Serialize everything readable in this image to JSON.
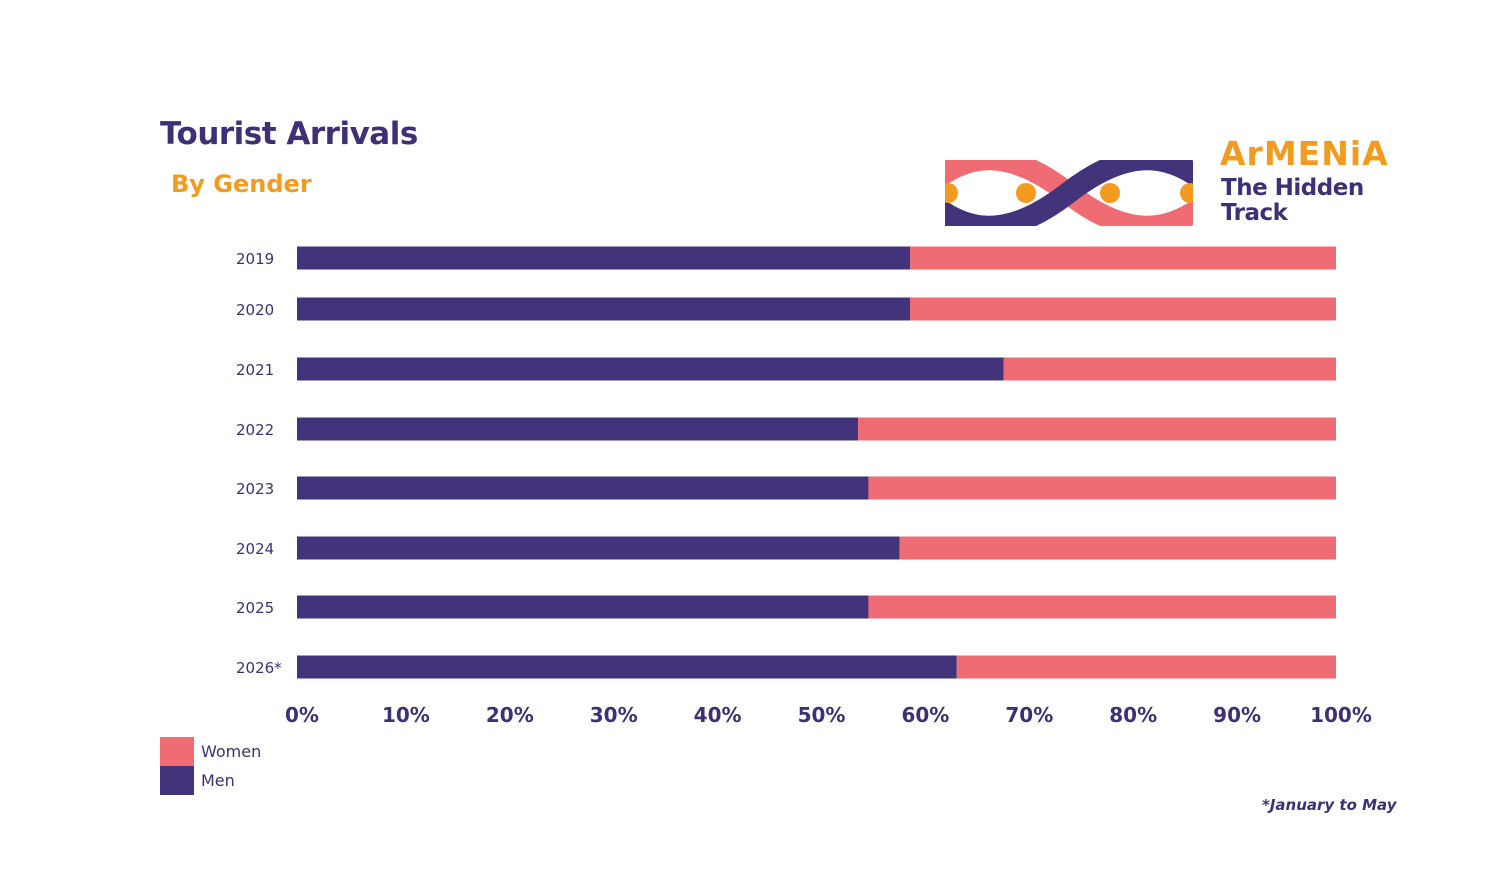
{
  "title": "Tourist Arrivals",
  "subtitle": "By Gender",
  "logo": {
    "name": "ArMENiA",
    "tagline_line1": "The Hidden",
    "tagline_line2": "Track"
  },
  "footnote": "*January to May",
  "colors": {
    "men": "#43337a",
    "women": "#f06c75",
    "title": "#3f2f74",
    "accent": "#f39a20"
  },
  "legend": {
    "items": [
      {
        "label": "Women",
        "color": "#f06c75"
      },
      {
        "label": "Men",
        "color": "#43337a"
      }
    ]
  },
  "chart_data": {
    "type": "bar",
    "orientation": "horizontal",
    "stacked": "percent",
    "title": "Tourist Arrivals",
    "subtitle": "By Gender",
    "categories": [
      "2019",
      "2020",
      "2021",
      "2022",
      "2023",
      "2024",
      "2025",
      "2026*"
    ],
    "series": [
      {
        "name": "Men",
        "values": [
          59,
          59,
          68,
          54,
          55,
          58,
          55,
          63.5
        ]
      },
      {
        "name": "Women",
        "values": [
          41,
          41,
          32,
          46,
          45,
          42,
          45,
          36.5
        ]
      }
    ],
    "xlim": [
      0,
      100
    ],
    "xticks": [
      "0%",
      "10%",
      "20%",
      "30%",
      "40%",
      "50%",
      "60%",
      "70%",
      "80%",
      "90%",
      "100%"
    ],
    "legend_position": "bottom-left",
    "grid": false
  }
}
